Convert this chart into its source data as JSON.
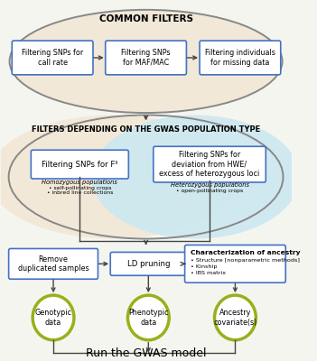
{
  "title": "COMMON FILTERS",
  "title2": "FILTERS DEPENDING ON THE GWAS POPULATION TYPE",
  "bottom_text": "Run the GWAS model",
  "box1_text": "Filtering SNPs for\ncall rate",
  "box2_text": "Filtering SNPs\nfor MAF/MAC",
  "box3_text": "Filtering individuals\nfor missing data",
  "box4_text": "Filtering SNPs for Fᴵᴵ",
  "box5_text": "Filtering SNPs for\ndeviation from HWE/\nexcess of heterozygous loci",
  "box6_text": "Remove\nduplicated samples",
  "box7_text": "LD pruning",
  "box8_line1": "Characterization of ancestry",
  "box8_line2": "• Structure [nonparametric methods]",
  "box8_line3": "• Kinship",
  "box8_line4": "• IBS matrix",
  "circle1_text": "Genotypic\ndata",
  "circle2_text": "Phenotypic\ndata",
  "circle3_text": "Ancestry\ncovariate(s)",
  "homo_label": "Homozygous populations",
  "homo_bullet1": "• self-pollinating crops",
  "homo_bullet2": "• inbred line collections",
  "hetero_label": "Heterozygous populations",
  "hetero_bullet1": "• open-pollinating crops",
  "bg_color": "#f5f5f0",
  "box_edge_color": "#4472c4",
  "box_fill": "#ffffff",
  "circle_color": "#9aaf1a",
  "oval1_fill": "#f2e8d8",
  "oval2_fill_left": "#f2e8d8",
  "oval2_fill_right": "#cce8f0",
  "oval_border": "#888888",
  "arrow_color": "#444444"
}
